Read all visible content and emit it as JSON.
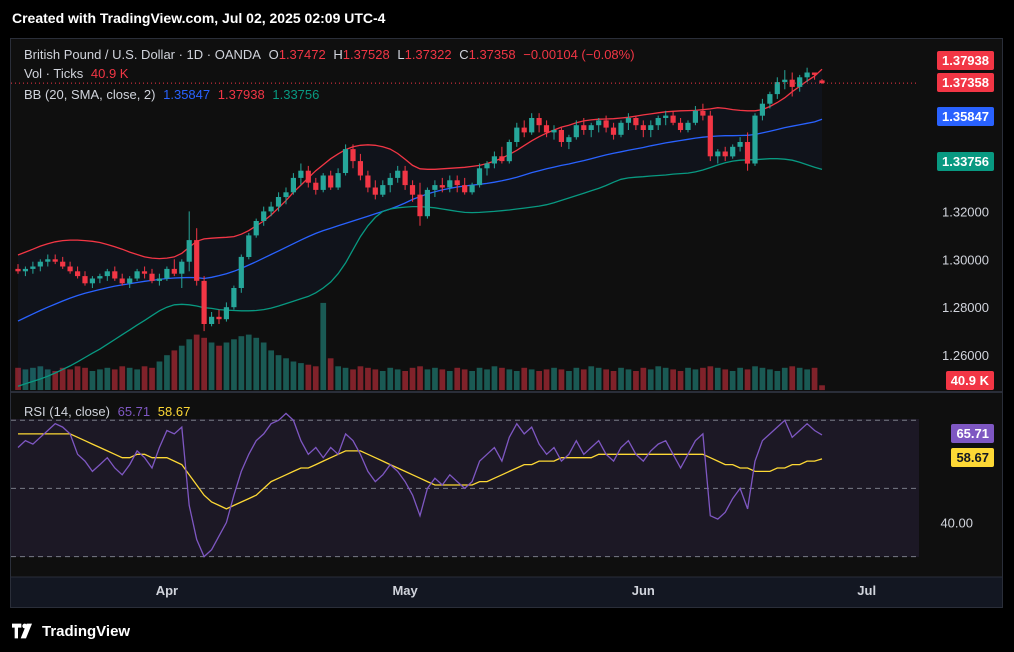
{
  "header": {
    "created_text": "Created with TradingView.com, Jul 02, 2025 02:09 UTC-4"
  },
  "legend": {
    "symbol": "British Pound / U.S. Dollar · 1D · OANDA",
    "o_label": "O",
    "o_value": "1.37472",
    "h_label": "H",
    "h_value": "1.37528",
    "l_label": "L",
    "l_value": "1.37322",
    "c_label": "C",
    "c_value": "1.37358",
    "change": "−0.00104 (−0.08%)",
    "vol_label": "Vol · Ticks",
    "vol_value": "40.9 K",
    "bb_label": "BB (20, SMA, close, 2)",
    "bb_basis": "1.35847",
    "bb_upper": "1.37938",
    "bb_lower": "1.33756",
    "rsi_label": "RSI (14, close)",
    "rsi_value": "65.71",
    "rsi_ma": "58.67"
  },
  "badges": {
    "upper": "1.37938",
    "close": "1.37358",
    "basis": "1.35847",
    "lower": "1.33756",
    "volume": "40.9 K",
    "rsi": "65.71",
    "rsi_ma": "58.67"
  },
  "colors": {
    "up": "#26a69a",
    "down": "#f23645",
    "basis": "#2962ff",
    "upper": "#f23645",
    "lower": "#089981",
    "rsi": "#7e57c2",
    "rsi_ma": "#fdd835"
  },
  "footer": {
    "brand": "TradingView"
  },
  "chart_data": {
    "type": "candlestick",
    "title": "British Pound / U.S. Dollar · 1D · OANDA",
    "price_ticks": [
      "1.32000",
      "1.30000",
      "1.28000",
      "1.26000"
    ],
    "price_tick_values": [
      1.32,
      1.3,
      1.28,
      1.26
    ],
    "price_range": [
      1.245,
      1.392
    ],
    "rsi_ticks": [
      "40.00"
    ],
    "rsi_tick_values": [
      40
    ],
    "rsi_range": [
      24,
      78
    ],
    "rsi_levels": [
      70,
      50,
      30
    ],
    "x_labels": [
      "Apr",
      "May",
      "Jun",
      "Jul"
    ],
    "x_label_index": [
      20,
      52,
      84,
      114
    ],
    "candles": [
      [
        1.296,
        1.298,
        1.294,
        1.295
      ],
      [
        1.295,
        1.297,
        1.293,
        1.296
      ],
      [
        1.296,
        1.299,
        1.294,
        1.297
      ],
      [
        1.297,
        1.3,
        1.295,
        1.299
      ],
      [
        1.299,
        1.302,
        1.297,
        1.3
      ],
      [
        1.3,
        1.302,
        1.298,
        1.299
      ],
      [
        1.299,
        1.301,
        1.296,
        1.297
      ],
      [
        1.297,
        1.299,
        1.294,
        1.295
      ],
      [
        1.295,
        1.297,
        1.292,
        1.293
      ],
      [
        1.293,
        1.295,
        1.289,
        1.29
      ],
      [
        1.29,
        1.293,
        1.288,
        1.292
      ],
      [
        1.292,
        1.294,
        1.29,
        1.293
      ],
      [
        1.293,
        1.296,
        1.291,
        1.295
      ],
      [
        1.295,
        1.297,
        1.291,
        1.292
      ],
      [
        1.292,
        1.294,
        1.289,
        1.29
      ],
      [
        1.29,
        1.293,
        1.288,
        1.292
      ],
      [
        1.292,
        1.296,
        1.291,
        1.295
      ],
      [
        1.295,
        1.297,
        1.292,
        1.294
      ],
      [
        1.294,
        1.296,
        1.29,
        1.291
      ],
      [
        1.291,
        1.294,
        1.289,
        1.292
      ],
      [
        1.292,
        1.297,
        1.291,
        1.296
      ],
      [
        1.296,
        1.3,
        1.293,
        1.294
      ],
      [
        1.294,
        1.3,
        1.288,
        1.299
      ],
      [
        1.299,
        1.32,
        1.295,
        1.308
      ],
      [
        1.308,
        1.313,
        1.289,
        1.291
      ],
      [
        1.291,
        1.293,
        1.27,
        1.273
      ],
      [
        1.273,
        1.278,
        1.272,
        1.276
      ],
      [
        1.276,
        1.279,
        1.273,
        1.275
      ],
      [
        1.275,
        1.282,
        1.274,
        1.28
      ],
      [
        1.28,
        1.289,
        1.279,
        1.288
      ],
      [
        1.288,
        1.302,
        1.286,
        1.301
      ],
      [
        1.301,
        1.311,
        1.3,
        1.31
      ],
      [
        1.31,
        1.317,
        1.309,
        1.316
      ],
      [
        1.316,
        1.322,
        1.314,
        1.32
      ],
      [
        1.32,
        1.324,
        1.318,
        1.322
      ],
      [
        1.322,
        1.328,
        1.32,
        1.326
      ],
      [
        1.326,
        1.33,
        1.323,
        1.328
      ],
      [
        1.328,
        1.336,
        1.327,
        1.334
      ],
      [
        1.334,
        1.34,
        1.331,
        1.337
      ],
      [
        1.337,
        1.339,
        1.33,
        1.332
      ],
      [
        1.332,
        1.334,
        1.327,
        1.329
      ],
      [
        1.329,
        1.336,
        1.328,
        1.335
      ],
      [
        1.335,
        1.337,
        1.329,
        1.33
      ],
      [
        1.33,
        1.338,
        1.329,
        1.336
      ],
      [
        1.336,
        1.348,
        1.335,
        1.346
      ],
      [
        1.346,
        1.348,
        1.338,
        1.341
      ],
      [
        1.341,
        1.344,
        1.333,
        1.335
      ],
      [
        1.335,
        1.337,
        1.328,
        1.33
      ],
      [
        1.33,
        1.333,
        1.325,
        1.327
      ],
      [
        1.327,
        1.333,
        1.326,
        1.331
      ],
      [
        1.331,
        1.336,
        1.328,
        1.334
      ],
      [
        1.334,
        1.339,
        1.332,
        1.337
      ],
      [
        1.337,
        1.339,
        1.329,
        1.331
      ],
      [
        1.331,
        1.333,
        1.324,
        1.327
      ],
      [
        1.327,
        1.332,
        1.314,
        1.318
      ],
      [
        1.318,
        1.33,
        1.317,
        1.329
      ],
      [
        1.329,
        1.333,
        1.326,
        1.331
      ],
      [
        1.331,
        1.334,
        1.328,
        1.33
      ],
      [
        1.33,
        1.335,
        1.328,
        1.333
      ],
      [
        1.333,
        1.335,
        1.328,
        1.331
      ],
      [
        1.331,
        1.334,
        1.327,
        1.328
      ],
      [
        1.328,
        1.332,
        1.327,
        1.331
      ],
      [
        1.331,
        1.34,
        1.33,
        1.338
      ],
      [
        1.338,
        1.341,
        1.335,
        1.34
      ],
      [
        1.34,
        1.345,
        1.338,
        1.343
      ],
      [
        1.343,
        1.347,
        1.34,
        1.341
      ],
      [
        1.341,
        1.35,
        1.34,
        1.349
      ],
      [
        1.349,
        1.357,
        1.347,
        1.355
      ],
      [
        1.355,
        1.358,
        1.351,
        1.353
      ],
      [
        1.353,
        1.361,
        1.352,
        1.359
      ],
      [
        1.359,
        1.361,
        1.353,
        1.356
      ],
      [
        1.356,
        1.358,
        1.351,
        1.353
      ],
      [
        1.353,
        1.356,
        1.35,
        1.354
      ],
      [
        1.354,
        1.355,
        1.347,
        1.349
      ],
      [
        1.349,
        1.352,
        1.346,
        1.351
      ],
      [
        1.351,
        1.358,
        1.35,
        1.356
      ],
      [
        1.356,
        1.359,
        1.352,
        1.354
      ],
      [
        1.354,
        1.357,
        1.351,
        1.356
      ],
      [
        1.356,
        1.359,
        1.353,
        1.358
      ],
      [
        1.358,
        1.36,
        1.353,
        1.355
      ],
      [
        1.355,
        1.357,
        1.35,
        1.352
      ],
      [
        1.352,
        1.358,
        1.351,
        1.357
      ],
      [
        1.357,
        1.361,
        1.354,
        1.359
      ],
      [
        1.359,
        1.36,
        1.354,
        1.356
      ],
      [
        1.356,
        1.358,
        1.351,
        1.354
      ],
      [
        1.354,
        1.358,
        1.351,
        1.356
      ],
      [
        1.356,
        1.36,
        1.354,
        1.359
      ],
      [
        1.359,
        1.362,
        1.356,
        1.36
      ],
      [
        1.36,
        1.362,
        1.356,
        1.357
      ],
      [
        1.357,
        1.359,
        1.353,
        1.354
      ],
      [
        1.354,
        1.358,
        1.353,
        1.357
      ],
      [
        1.357,
        1.364,
        1.356,
        1.362
      ],
      [
        1.362,
        1.365,
        1.358,
        1.36
      ],
      [
        1.36,
        1.362,
        1.341,
        1.343
      ],
      [
        1.343,
        1.346,
        1.34,
        1.345
      ],
      [
        1.345,
        1.347,
        1.341,
        1.343
      ],
      [
        1.343,
        1.348,
        1.342,
        1.347
      ],
      [
        1.347,
        1.351,
        1.345,
        1.349
      ],
      [
        1.349,
        1.353,
        1.337,
        1.34
      ],
      [
        1.34,
        1.361,
        1.339,
        1.36
      ],
      [
        1.36,
        1.367,
        1.358,
        1.365
      ],
      [
        1.365,
        1.37,
        1.363,
        1.369
      ],
      [
        1.369,
        1.376,
        1.367,
        1.374
      ],
      [
        1.374,
        1.379,
        1.371,
        1.375
      ],
      [
        1.375,
        1.378,
        1.368,
        1.372
      ],
      [
        1.372,
        1.377,
        1.37,
        1.376
      ],
      [
        1.376,
        1.38,
        1.374,
        1.378
      ],
      [
        1.378,
        1.378,
        1.375,
        1.377
      ],
      [
        1.37472,
        1.37528,
        1.37322,
        1.37358
      ]
    ],
    "bb_basis": [
      1.2742,
      1.2757,
      1.2772,
      1.2786,
      1.28,
      1.2813,
      1.2826,
      1.2838,
      1.2849,
      1.2858,
      1.2866,
      1.2874,
      1.2881,
      1.2888,
      1.2893,
      1.2898,
      1.2903,
      1.2908,
      1.2912,
      1.2916,
      1.292,
      1.2922,
      1.2923,
      1.2924,
      1.2923,
      1.292,
      1.2925,
      1.2932,
      1.294,
      1.295,
      1.2962,
      1.2976,
      1.299,
      1.3005,
      1.302,
      1.3035,
      1.305,
      1.3065,
      1.308,
      1.3095,
      1.3108,
      1.312,
      1.313,
      1.314,
      1.315,
      1.316,
      1.317,
      1.318,
      1.319,
      1.32,
      1.321,
      1.3222,
      1.3235,
      1.325,
      1.3262,
      1.3273,
      1.3282,
      1.329,
      1.3296,
      1.3302,
      1.3306,
      1.331,
      1.3313,
      1.3317,
      1.3322,
      1.3328,
      1.3335,
      1.3343,
      1.3352,
      1.3362,
      1.337,
      1.3378,
      1.3385,
      1.3392,
      1.3398,
      1.3405,
      1.3412,
      1.342,
      1.3428,
      1.3436,
      1.3443,
      1.3449,
      1.3455,
      1.3461,
      1.3467,
      1.3474,
      1.348,
      1.3486,
      1.3491,
      1.3496,
      1.3501,
      1.3506,
      1.351,
      1.3513,
      1.3515,
      1.3516,
      1.3516,
      1.3517,
      1.3518,
      1.3521,
      1.3528,
      1.3535,
      1.3542,
      1.355,
      1.3556,
      1.3562,
      1.3568,
      1.3574,
      1.35847
    ],
    "bb_upper": [
      1.3018,
      1.303,
      1.3042,
      1.3055,
      1.3065,
      1.3073,
      1.3078,
      1.308,
      1.308,
      1.3078,
      1.3075,
      1.307,
      1.3062,
      1.3052,
      1.3042,
      1.303,
      1.302,
      1.301,
      1.3005,
      1.3003,
      1.3005,
      1.301,
      1.3025,
      1.305,
      1.3075,
      1.3085,
      1.3088,
      1.309,
      1.3092,
      1.3095,
      1.3105,
      1.312,
      1.314,
      1.316,
      1.3185,
      1.3215,
      1.3245,
      1.328,
      1.331,
      1.334,
      1.337,
      1.3395,
      1.342,
      1.344,
      1.3458,
      1.347,
      1.3476,
      1.3478,
      1.3476,
      1.347,
      1.346,
      1.3442,
      1.3418,
      1.3392,
      1.3378,
      1.3376,
      1.3376,
      1.3378,
      1.338,
      1.3382,
      1.3384,
      1.3388,
      1.3392,
      1.34,
      1.341,
      1.3422,
      1.3438,
      1.3455,
      1.3475,
      1.3495,
      1.3512,
      1.3527,
      1.354,
      1.3552,
      1.356,
      1.357,
      1.3578,
      1.3582,
      1.3585,
      1.3586,
      1.3587,
      1.359,
      1.3593,
      1.3598,
      1.3603,
      1.3607,
      1.3612,
      1.3616,
      1.3618,
      1.362,
      1.3621,
      1.3622,
      1.3625,
      1.3628,
      1.3633,
      1.363,
      1.3625,
      1.3622,
      1.362,
      1.362,
      1.3625,
      1.3638,
      1.3655,
      1.3675,
      1.37,
      1.3722,
      1.3745,
      1.3765,
      1.37938
    ],
    "bb_lower": [
      1.247,
      1.248,
      1.249,
      1.25,
      1.2512,
      1.2525,
      1.254,
      1.2555,
      1.2572,
      1.259,
      1.2608,
      1.2625,
      1.2645,
      1.2665,
      1.2685,
      1.2705,
      1.2725,
      1.2745,
      1.2765,
      1.2785,
      1.28,
      1.281,
      1.2812,
      1.281,
      1.2805,
      1.2798,
      1.2795,
      1.279,
      1.2788,
      1.2786,
      1.2785,
      1.2785,
      1.2786,
      1.279,
      1.2796,
      1.2805,
      1.2815,
      1.2825,
      1.2835,
      1.2845,
      1.286,
      1.288,
      1.2905,
      1.294,
      1.2985,
      1.304,
      1.3095,
      1.314,
      1.3175,
      1.32,
      1.321,
      1.3215,
      1.3218,
      1.322,
      1.322,
      1.3218,
      1.3215,
      1.321,
      1.3205,
      1.32,
      1.3196,
      1.3195,
      1.3196,
      1.3198,
      1.32,
      1.3203,
      1.3206,
      1.321,
      1.3214,
      1.3218,
      1.3222,
      1.3228,
      1.3236,
      1.3246,
      1.3256,
      1.3266,
      1.3276,
      1.3286,
      1.3296,
      1.3308,
      1.3322,
      1.3334,
      1.334,
      1.3343,
      1.3345,
      1.3348,
      1.335,
      1.3352,
      1.3356,
      1.3358,
      1.336,
      1.3365,
      1.3373,
      1.3383,
      1.3394,
      1.3403,
      1.341,
      1.3414,
      1.3415,
      1.3416,
      1.3418,
      1.342,
      1.342,
      1.3418,
      1.3414,
      1.3405,
      1.3395,
      1.3384,
      1.33756
    ],
    "volume": [
      14,
      13,
      14,
      15,
      13,
      12,
      14,
      13,
      15,
      14,
      12,
      13,
      14,
      13,
      15,
      14,
      13,
      15,
      14,
      18,
      22,
      25,
      28,
      32,
      35,
      33,
      30,
      28,
      30,
      32,
      34,
      35,
      33,
      30,
      25,
      22,
      20,
      18,
      17,
      16,
      15,
      55,
      20,
      15,
      14,
      13,
      15,
      14,
      13,
      12,
      14,
      13,
      12,
      14,
      15,
      13,
      14,
      13,
      12,
      14,
      13,
      12,
      14,
      13,
      15,
      14,
      13,
      12,
      14,
      13,
      12,
      13,
      14,
      13,
      12,
      14,
      13,
      15,
      14,
      13,
      12,
      14,
      13,
      12,
      14,
      13,
      15,
      14,
      13,
      12,
      14,
      13,
      14,
      15,
      14,
      13,
      12,
      14,
      13,
      15,
      14,
      13,
      12,
      14,
      15,
      14,
      13,
      14,
      3
    ],
    "rsi": [
      62,
      64,
      63,
      65,
      67,
      69,
      68,
      66,
      60,
      58,
      55,
      57,
      59,
      56,
      54,
      57,
      61,
      59,
      56,
      62,
      67,
      66,
      68,
      45,
      35,
      30,
      32,
      36,
      40,
      48,
      55,
      60,
      64,
      66,
      69,
      70,
      72,
      70,
      64,
      60,
      62,
      59,
      62,
      60,
      66,
      64,
      60,
      55,
      52,
      54,
      57,
      55,
      52,
      48,
      42,
      50,
      53,
      51,
      54,
      52,
      50,
      52,
      58,
      60,
      62,
      58,
      65,
      69,
      66,
      68,
      63,
      60,
      62,
      58,
      60,
      64,
      60,
      62,
      64,
      60,
      58,
      62,
      64,
      60,
      58,
      61,
      63,
      64,
      60,
      56,
      60,
      64,
      66,
      42,
      41,
      43,
      47,
      50,
      44,
      58,
      64,
      66,
      68,
      70,
      65,
      67,
      69,
      67,
      65.71
    ],
    "rsi_ma": [
      66,
      66,
      66,
      66,
      66,
      66,
      66,
      66,
      65,
      64,
      63,
      62,
      61,
      60,
      59,
      59,
      60,
      60,
      59,
      59,
      59,
      58,
      57,
      54,
      51,
      48,
      46,
      45,
      44,
      45,
      46,
      47,
      48,
      50,
      52,
      53,
      54,
      55,
      56,
      56,
      57,
      58,
      59,
      60,
      61,
      61,
      61,
      60,
      59,
      58,
      57,
      56,
      55,
      54,
      53,
      52,
      51,
      51,
      51,
      51,
      51,
      51,
      52,
      52,
      53,
      54,
      55,
      56,
      57,
      57,
      58,
      58,
      58,
      59,
      59,
      59,
      59,
      59,
      60,
      60,
      60,
      60,
      60,
      60,
      60,
      60,
      60,
      60,
      60,
      60,
      60,
      60,
      60,
      59,
      58,
      57,
      57,
      56,
      56,
      55,
      55,
      55,
      56,
      56,
      57,
      57,
      58,
      58,
      58.67
    ]
  }
}
